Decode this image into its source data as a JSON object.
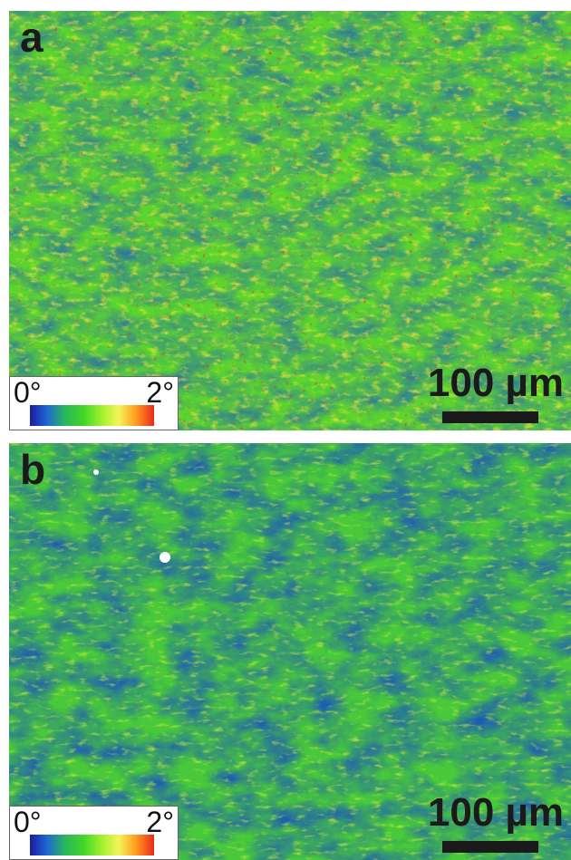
{
  "panels": [
    {
      "label": "a",
      "scale_bar_label": "100 µm",
      "legend": {
        "min_label": "0°",
        "max_label": "2°"
      }
    },
    {
      "label": "b",
      "scale_bar_label": "100 µm",
      "legend": {
        "min_label": "0°",
        "max_label": "2°"
      }
    }
  ],
  "colormap": [
    "#1a1aa8",
    "#1e6ad0",
    "#2bb85a",
    "#3fd52a",
    "#9ef02a",
    "#f5f55a",
    "#ff9a1e",
    "#e8281e"
  ],
  "colors": {
    "green": "#3fcd2c",
    "blue": "#1f64b4",
    "yellow": "#f0e63a",
    "red": "#e83c20",
    "dark_text": "#1a1a1a"
  }
}
